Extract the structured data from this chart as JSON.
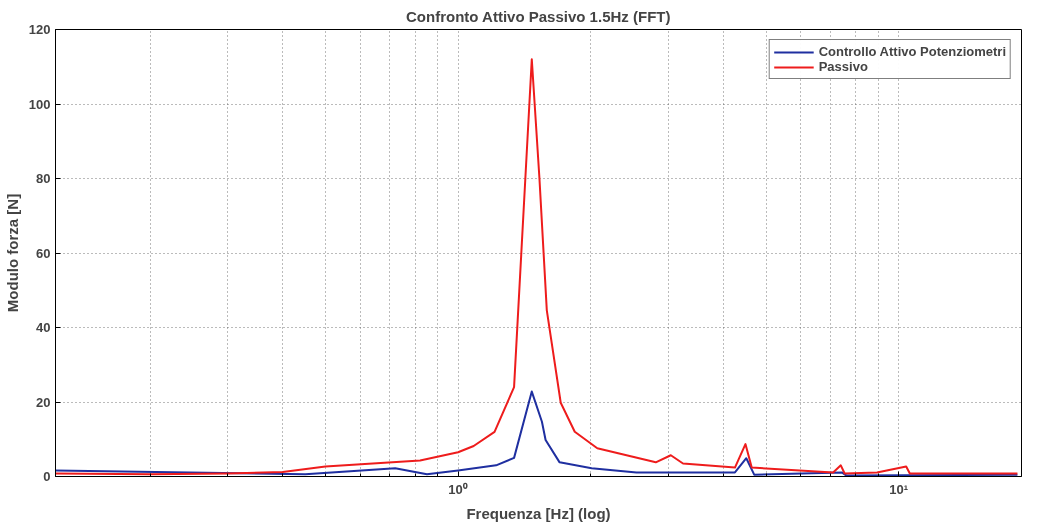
{
  "chart_data": {
    "type": "line",
    "title": "Confronto Attivo Passivo 1.5Hz (FFT)",
    "xlabel": "Frequenza [Hz] (log)",
    "ylabel": "Modulo forza [N]",
    "log": "x",
    "xlim": [
      0.122,
      19
    ],
    "ylim": [
      0,
      120
    ],
    "xticks": [
      {
        "value": 1,
        "label": "10⁰"
      },
      {
        "value": 10,
        "label": "10¹"
      }
    ],
    "yticks": [
      0,
      20,
      40,
      60,
      80,
      100,
      120
    ],
    "grid": true,
    "legend": "top right",
    "line_style": "solid",
    "marker": "none",
    "series": [
      {
        "name": "Controllo Attivo Potenziometri",
        "color": "#1f2fa0",
        "x": [
          0.122,
          0.45,
          0.72,
          0.85,
          1.0,
          1.22,
          1.34,
          1.47,
          1.55,
          1.58,
          1.7,
          2.01,
          2.54,
          3.53,
          4.25,
          4.51,
          4.7,
          7.43,
          7.6,
          18.6
        ],
        "values": [
          1.6,
          0.6,
          2.2,
          0.6,
          1.6,
          3.0,
          5.0,
          22.8,
          14.7,
          9.8,
          3.8,
          2.2,
          1.1,
          1.1,
          1.1,
          4.9,
          0.5,
          1.1,
          0.3,
          0.5
        ]
      },
      {
        "name": "Passivo",
        "color": "#ee1c1c",
        "x": [
          0.122,
          0.2,
          0.3,
          0.4,
          0.5,
          0.82,
          1.0,
          1.085,
          1.21,
          1.34,
          1.47,
          1.53,
          1.59,
          1.71,
          1.84,
          2.07,
          2.81,
          3.04,
          3.24,
          4.25,
          4.49,
          4.64,
          7.1,
          7.39,
          7.54,
          8.93,
          10.4,
          10.6,
          18.6
        ],
        "values": [
          0.8,
          0.6,
          0.8,
          1.2,
          2.7,
          4.3,
          6.5,
          8.2,
          12,
          24,
          112,
          80,
          44.6,
          19.8,
          12,
          7.6,
          3.8,
          5.7,
          3.5,
          2.4,
          8.7,
          2.4,
          1.1,
          3.0,
          0.8,
          1.1,
          2.7,
          0.8,
          0.8
        ]
      }
    ]
  }
}
